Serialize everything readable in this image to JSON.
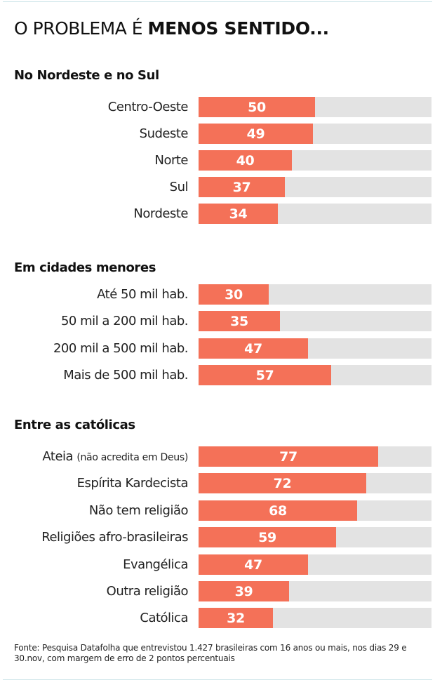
{
  "title": {
    "regular": "O PROBLEMA É ",
    "bold": "MENOS SENTIDO..."
  },
  "colors": {
    "bar": "#f47158",
    "track": "#e3e3e3",
    "rule": "#c9e3e7"
  },
  "chart_data": [
    {
      "type": "bar",
      "orientation": "horizontal",
      "title": "No Nordeste e no Sul",
      "xlim": [
        0,
        100
      ],
      "categories": [
        "Centro-Oeste",
        "Sudeste",
        "Norte",
        "Sul",
        "Nordeste"
      ],
      "values": [
        50,
        49,
        40,
        37,
        34
      ]
    },
    {
      "type": "bar",
      "orientation": "horizontal",
      "title": "Em cidades menores",
      "xlim": [
        0,
        100
      ],
      "categories": [
        "Até 50 mil hab.",
        "50 mil a 200 mil hab.",
        "200 mil a 500 mil hab.",
        "Mais de 500 mil hab."
      ],
      "values": [
        30,
        35,
        47,
        57
      ]
    },
    {
      "type": "bar",
      "orientation": "horizontal",
      "title": "Entre as católicas",
      "xlim": [
        0,
        100
      ],
      "categories": [
        "Ateia",
        "Espírita Kardecista",
        "Não tem religião",
        "Religiões afro-brasileiras",
        "Evangélica",
        "Outra religião",
        "Católica"
      ],
      "notes": [
        "(não acredita em Deus)",
        "",
        "",
        "",
        "",
        "",
        ""
      ],
      "values": [
        77,
        72,
        68,
        59,
        47,
        39,
        32
      ]
    }
  ],
  "source": "Fonte: Pesquisa Datafolha que entrevistou 1.427 brasileiras com 16 anos ou mais, nos dias 29 e 30.nov, com margem de erro de 2 pontos percentuais"
}
